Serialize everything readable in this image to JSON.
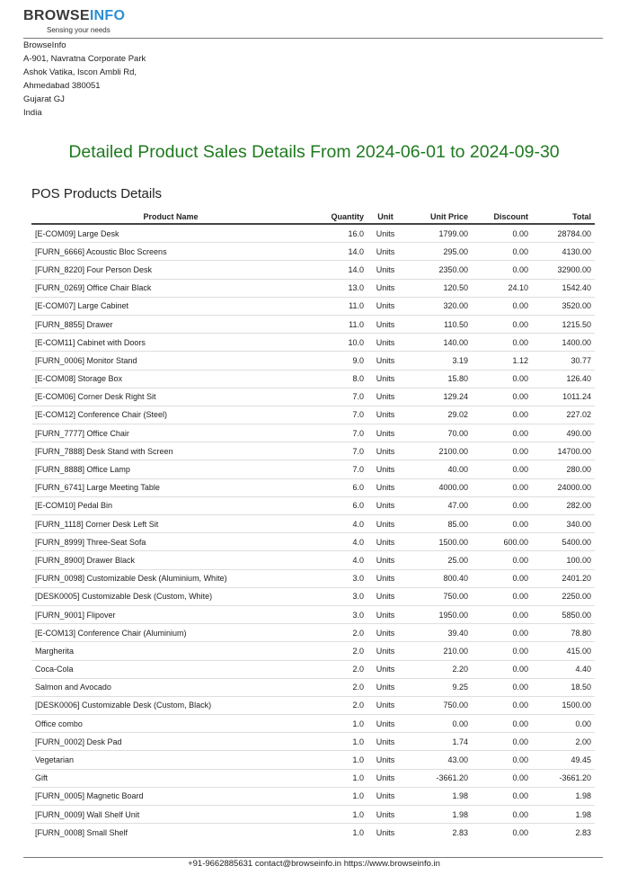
{
  "logo": {
    "brand_part1": "BROWSE",
    "brand_part2": "INFO",
    "tagline": "Sensing your needs"
  },
  "company": {
    "name": "BrowseInfo",
    "address_line1": "A-901, Navratna Corporate Park",
    "address_line2": "Ashok Vatika, Iscon Ambli Rd,",
    "city_zip": "Ahmedabad 380051",
    "state": "Gujarat GJ",
    "country": "India"
  },
  "report": {
    "title": "Detailed Product Sales Details From 2024-06-01 to 2024-09-30",
    "section_title": "POS Products Details"
  },
  "table": {
    "headers": {
      "name": "Product Name",
      "quantity": "Quantity",
      "unit": "Unit",
      "unit_price": "Unit Price",
      "discount": "Discount",
      "total": "Total"
    },
    "rows": [
      {
        "name": "[E-COM09] Large Desk",
        "quantity": "16.0",
        "unit": "Units",
        "unit_price": "1799.00",
        "discount": "0.00",
        "total": "28784.00"
      },
      {
        "name": "[FURN_6666] Acoustic Bloc Screens",
        "quantity": "14.0",
        "unit": "Units",
        "unit_price": "295.00",
        "discount": "0.00",
        "total": "4130.00"
      },
      {
        "name": "[FURN_8220] Four Person Desk",
        "quantity": "14.0",
        "unit": "Units",
        "unit_price": "2350.00",
        "discount": "0.00",
        "total": "32900.00"
      },
      {
        "name": "[FURN_0269] Office Chair Black",
        "quantity": "13.0",
        "unit": "Units",
        "unit_price": "120.50",
        "discount": "24.10",
        "total": "1542.40"
      },
      {
        "name": "[E-COM07] Large Cabinet",
        "quantity": "11.0",
        "unit": "Units",
        "unit_price": "320.00",
        "discount": "0.00",
        "total": "3520.00"
      },
      {
        "name": "[FURN_8855] Drawer",
        "quantity": "11.0",
        "unit": "Units",
        "unit_price": "110.50",
        "discount": "0.00",
        "total": "1215.50"
      },
      {
        "name": "[E-COM11] Cabinet with Doors",
        "quantity": "10.0",
        "unit": "Units",
        "unit_price": "140.00",
        "discount": "0.00",
        "total": "1400.00"
      },
      {
        "name": "[FURN_0006] Monitor Stand",
        "quantity": "9.0",
        "unit": "Units",
        "unit_price": "3.19",
        "discount": "1.12",
        "total": "30.77"
      },
      {
        "name": "[E-COM08] Storage Box",
        "quantity": "8.0",
        "unit": "Units",
        "unit_price": "15.80",
        "discount": "0.00",
        "total": "126.40"
      },
      {
        "name": "[E-COM06] Corner Desk Right Sit",
        "quantity": "7.0",
        "unit": "Units",
        "unit_price": "129.24",
        "discount": "0.00",
        "total": "1011.24"
      },
      {
        "name": "[E-COM12] Conference Chair (Steel)",
        "quantity": "7.0",
        "unit": "Units",
        "unit_price": "29.02",
        "discount": "0.00",
        "total": "227.02"
      },
      {
        "name": "[FURN_7777] Office Chair",
        "quantity": "7.0",
        "unit": "Units",
        "unit_price": "70.00",
        "discount": "0.00",
        "total": "490.00"
      },
      {
        "name": "[FURN_7888] Desk Stand with Screen",
        "quantity": "7.0",
        "unit": "Units",
        "unit_price": "2100.00",
        "discount": "0.00",
        "total": "14700.00"
      },
      {
        "name": "[FURN_8888] Office Lamp",
        "quantity": "7.0",
        "unit": "Units",
        "unit_price": "40.00",
        "discount": "0.00",
        "total": "280.00"
      },
      {
        "name": "[FURN_6741] Large Meeting Table",
        "quantity": "6.0",
        "unit": "Units",
        "unit_price": "4000.00",
        "discount": "0.00",
        "total": "24000.00"
      },
      {
        "name": "[E-COM10] Pedal Bin",
        "quantity": "6.0",
        "unit": "Units",
        "unit_price": "47.00",
        "discount": "0.00",
        "total": "282.00"
      },
      {
        "name": "[FURN_1118] Corner Desk Left Sit",
        "quantity": "4.0",
        "unit": "Units",
        "unit_price": "85.00",
        "discount": "0.00",
        "total": "340.00"
      },
      {
        "name": "[FURN_8999] Three-Seat Sofa",
        "quantity": "4.0",
        "unit": "Units",
        "unit_price": "1500.00",
        "discount": "600.00",
        "total": "5400.00"
      },
      {
        "name": "[FURN_8900] Drawer Black",
        "quantity": "4.0",
        "unit": "Units",
        "unit_price": "25.00",
        "discount": "0.00",
        "total": "100.00"
      },
      {
        "name": "[FURN_0098] Customizable Desk (Aluminium, White)",
        "quantity": "3.0",
        "unit": "Units",
        "unit_price": "800.40",
        "discount": "0.00",
        "total": "2401.20"
      },
      {
        "name": "[DESK0005] Customizable Desk (Custom, White)",
        "quantity": "3.0",
        "unit": "Units",
        "unit_price": "750.00",
        "discount": "0.00",
        "total": "2250.00"
      },
      {
        "name": "[FURN_9001] Flipover",
        "quantity": "3.0",
        "unit": "Units",
        "unit_price": "1950.00",
        "discount": "0.00",
        "total": "5850.00"
      },
      {
        "name": "[E-COM13] Conference Chair (Aluminium)",
        "quantity": "2.0",
        "unit": "Units",
        "unit_price": "39.40",
        "discount": "0.00",
        "total": "78.80"
      },
      {
        "name": "Margherita",
        "quantity": "2.0",
        "unit": "Units",
        "unit_price": "210.00",
        "discount": "0.00",
        "total": "415.00"
      },
      {
        "name": "Coca-Cola",
        "quantity": "2.0",
        "unit": "Units",
        "unit_price": "2.20",
        "discount": "0.00",
        "total": "4.40"
      },
      {
        "name": "Salmon and Avocado",
        "quantity": "2.0",
        "unit": "Units",
        "unit_price": "9.25",
        "discount": "0.00",
        "total": "18.50"
      },
      {
        "name": "[DESK0006] Customizable Desk (Custom, Black)",
        "quantity": "2.0",
        "unit": "Units",
        "unit_price": "750.00",
        "discount": "0.00",
        "total": "1500.00"
      },
      {
        "name": "Office combo",
        "quantity": "1.0",
        "unit": "Units",
        "unit_price": "0.00",
        "discount": "0.00",
        "total": "0.00"
      },
      {
        "name": "[FURN_0002] Desk Pad",
        "quantity": "1.0",
        "unit": "Units",
        "unit_price": "1.74",
        "discount": "0.00",
        "total": "2.00"
      },
      {
        "name": "Vegetarian",
        "quantity": "1.0",
        "unit": "Units",
        "unit_price": "43.00",
        "discount": "0.00",
        "total": "49.45"
      },
      {
        "name": "Gift",
        "quantity": "1.0",
        "unit": "Units",
        "unit_price": "-3661.20",
        "discount": "0.00",
        "total": "-3661.20"
      },
      {
        "name": "[FURN_0005] Magnetic Board",
        "quantity": "1.0",
        "unit": "Units",
        "unit_price": "1.98",
        "discount": "0.00",
        "total": "1.98"
      },
      {
        "name": "[FURN_0009] Wall Shelf Unit",
        "quantity": "1.0",
        "unit": "Units",
        "unit_price": "1.98",
        "discount": "0.00",
        "total": "1.98"
      },
      {
        "name": "[FURN_0008] Small Shelf",
        "quantity": "1.0",
        "unit": "Units",
        "unit_price": "2.83",
        "discount": "0.00",
        "total": "2.83"
      }
    ]
  },
  "footer": {
    "text": "+91-9662885631 contact@browseinfo.in https://www.browseinfo.in"
  }
}
